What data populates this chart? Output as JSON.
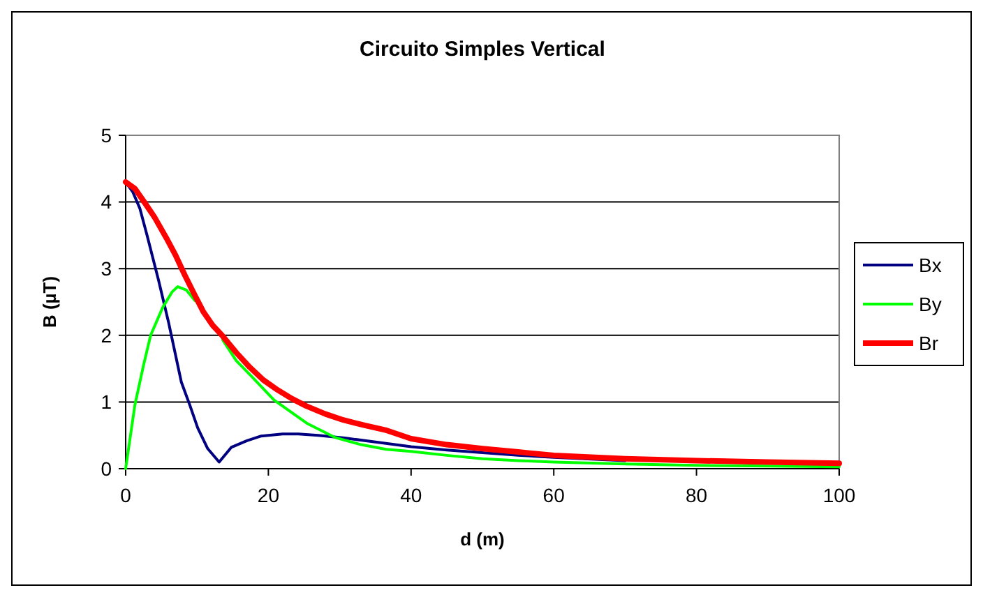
{
  "chart_data": {
    "type": "line",
    "title": "Circuito Simples Vertical",
    "xlabel": "d (m)",
    "ylabel": "B (µT)",
    "xlim": [
      0,
      100
    ],
    "ylim": [
      0,
      5
    ],
    "xticks": [
      0,
      20,
      40,
      60,
      80,
      100
    ],
    "yticks": [
      0,
      1,
      2,
      3,
      4,
      5
    ],
    "grid": "y",
    "legend": "right",
    "marker": "none",
    "line_style": "solid",
    "series": [
      {
        "name": "Bx",
        "color": "#000080",
        "x": [
          0,
          1,
          2,
          3,
          4.6,
          6,
          7.8,
          9,
          10.1,
          11.5,
          13.1,
          14.8,
          17,
          19,
          22,
          24.2,
          27,
          30.7,
          35,
          40,
          45,
          50,
          55,
          60,
          70
        ],
        "values": [
          4.3,
          4.15,
          3.9,
          3.5,
          2.83,
          2.2,
          1.3,
          0.95,
          0.61,
          0.3,
          0.1,
          0.32,
          0.42,
          0.49,
          0.52,
          0.52,
          0.5,
          0.46,
          0.4,
          0.33,
          0.28,
          0.24,
          0.2,
          0.17,
          0.12
        ]
      },
      {
        "name": "By",
        "color": "#00ff00",
        "x": [
          0,
          1.3,
          2.5,
          3.5,
          5.2,
          6.5,
          7.3,
          8.5,
          9.7,
          11.5,
          13.6,
          15.5,
          17.5,
          20.8,
          25.4,
          29.3,
          33,
          36.5,
          40,
          45,
          50,
          55,
          60,
          70,
          80,
          90,
          100
        ],
        "values": [
          0,
          0.96,
          1.55,
          2.0,
          2.42,
          2.65,
          2.73,
          2.68,
          2.52,
          null,
          1.93,
          1.62,
          1.4,
          1.03,
          0.68,
          0.47,
          0.36,
          0.29,
          0.26,
          0.2,
          0.15,
          0.12,
          0.1,
          0.07,
          0.05,
          0.04,
          0.03
        ]
      },
      {
        "name": "Br",
        "color": "#ff0000",
        "x": [
          0,
          1.3,
          2.6,
          4,
          5.7,
          7,
          8.3,
          9.6,
          10.9,
          12.2,
          13.5,
          15.5,
          17.4,
          19.3,
          21.3,
          23.3,
          25.3,
          28,
          30.5,
          33.5,
          36.4,
          40,
          45,
          50,
          55,
          60,
          70,
          80,
          90,
          100
        ],
        "values": [
          4.3,
          4.2,
          4.0,
          3.78,
          3.46,
          3.2,
          2.9,
          2.62,
          2.35,
          2.15,
          2.0,
          1.74,
          1.52,
          1.33,
          1.18,
          1.05,
          0.94,
          0.82,
          0.73,
          0.65,
          0.58,
          0.45,
          0.36,
          0.3,
          0.25,
          0.2,
          0.15,
          0.12,
          0.1,
          0.08
        ]
      }
    ]
  }
}
